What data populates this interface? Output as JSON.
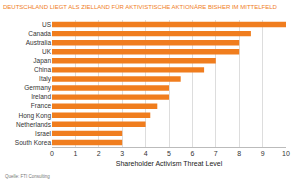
{
  "chart_data": {
    "type": "bar",
    "orientation": "horizontal",
    "title": "DEUTSCHLAND LIEGT ALS ZIELLAND FÜR AKTIVISTISCHE AKTIONÄRE BISHER IM MITTELFELD",
    "x_label": "Shareholder Activism Threat Level",
    "source": "Quelle: FTI Consulting",
    "categories": [
      "US",
      "Canada",
      "Australia",
      "UK",
      "Japan",
      "China",
      "Italy",
      "Germany",
      "Ireland",
      "France",
      "Hong Kong",
      "Netherlands",
      "Israel",
      "South Korea"
    ],
    "values": [
      10,
      8.5,
      8,
      8,
      7,
      6.5,
      5.5,
      5,
      5,
      4.5,
      4.2,
      4,
      3,
      3
    ],
    "color": "#f07d1e",
    "xlim": [
      0,
      10
    ],
    "xticks": [
      0,
      1,
      2,
      3,
      4,
      5,
      6,
      7,
      8,
      9,
      10
    ],
    "grid": true
  }
}
